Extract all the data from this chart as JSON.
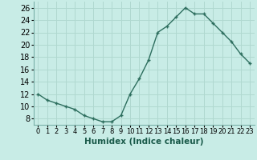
{
  "x": [
    0,
    1,
    2,
    3,
    4,
    5,
    6,
    7,
    8,
    9,
    10,
    11,
    12,
    13,
    14,
    15,
    16,
    17,
    18,
    19,
    20,
    21,
    22,
    23
  ],
  "y": [
    12,
    11,
    10.5,
    10,
    9.5,
    8.5,
    8,
    7.5,
    7.5,
    8.5,
    12,
    14.5,
    17.5,
    22,
    23,
    24.5,
    26,
    25,
    25,
    23.5,
    22,
    20.5,
    18.5,
    17
  ],
  "line_color": "#2d6e5e",
  "marker": "+",
  "marker_size": 3.5,
  "marker_linewidth": 1.0,
  "bg_color": "#c8ece6",
  "grid_color": "#b0d8d0",
  "xlabel": "Humidex (Indice chaleur)",
  "xlim": [
    -0.5,
    23.5
  ],
  "ylim": [
    7,
    27
  ],
  "yticks": [
    8,
    10,
    12,
    14,
    16,
    18,
    20,
    22,
    24,
    26
  ],
  "xticks": [
    0,
    1,
    2,
    3,
    4,
    5,
    6,
    7,
    8,
    9,
    10,
    11,
    12,
    13,
    14,
    15,
    16,
    17,
    18,
    19,
    20,
    21,
    22,
    23
  ],
  "xlabel_fontsize": 7.5,
  "ytick_fontsize": 7,
  "xtick_fontsize": 6,
  "line_width": 1.0,
  "title": ""
}
